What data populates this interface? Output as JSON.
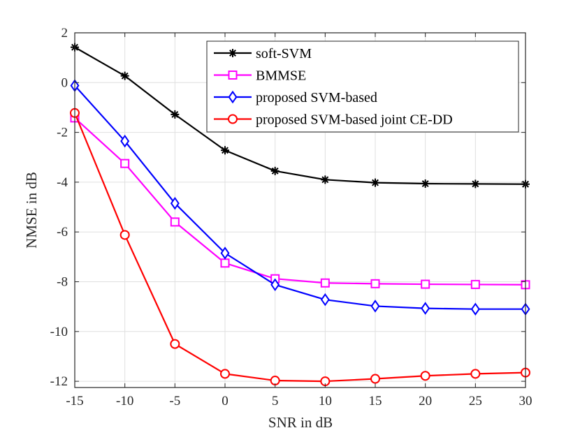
{
  "chart_data": {
    "type": "line",
    "title": "",
    "xlabel": "SNR in dB",
    "ylabel": "NMSE in dB",
    "x": [
      -15,
      -10,
      -5,
      0,
      5,
      10,
      15,
      20,
      25,
      30
    ],
    "xlim": [
      -15,
      30
    ],
    "ylim": [
      -12.25,
      2
    ],
    "xticks": [
      -15,
      -10,
      -5,
      0,
      5,
      10,
      15,
      20,
      25,
      30
    ],
    "yticks": [
      2,
      0,
      -2,
      -4,
      -6,
      -8,
      -10,
      -12
    ],
    "grid": true,
    "legend_position": "top-right",
    "series": [
      {
        "name": "soft-SVM",
        "color": "#000000",
        "marker": "asterisk",
        "values": [
          1.42,
          0.27,
          -1.28,
          -2.72,
          -3.55,
          -3.9,
          -4.02,
          -4.06,
          -4.07,
          -4.08
        ]
      },
      {
        "name": "BMMSE",
        "color": "#ff00ff",
        "marker": "square",
        "values": [
          -1.42,
          -3.25,
          -5.6,
          -7.25,
          -7.88,
          -8.05,
          -8.08,
          -8.1,
          -8.11,
          -8.12
        ]
      },
      {
        "name": "proposed SVM-based",
        "color": "#0000ff",
        "marker": "diamond",
        "values": [
          -0.12,
          -2.35,
          -4.85,
          -6.85,
          -8.12,
          -8.72,
          -8.98,
          -9.07,
          -9.1,
          -9.1
        ]
      },
      {
        "name": "proposed SVM-based joint CE-DD",
        "color": "#ff0000",
        "marker": "circle",
        "values": [
          -1.22,
          -6.12,
          -10.5,
          -11.7,
          -11.97,
          -12.0,
          -11.9,
          -11.78,
          -11.7,
          -11.65
        ]
      }
    ]
  }
}
